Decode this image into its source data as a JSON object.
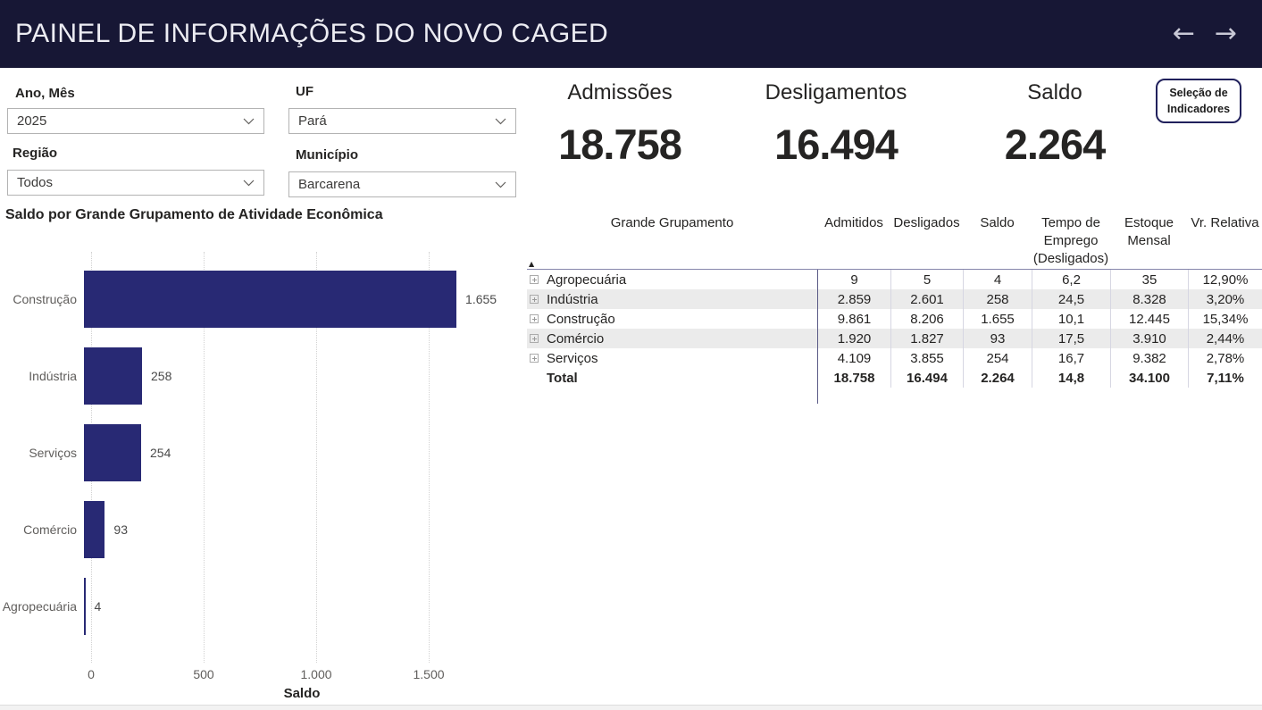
{
  "header": {
    "title": "PAINEL DE INFORMAÇÕES DO NOVO CAGED",
    "back_arrow": "←",
    "forward_arrow": "→"
  },
  "filters": [
    {
      "label": "Ano, Mês",
      "value": "2025"
    },
    {
      "label": "UF",
      "value": "Pará"
    },
    {
      "label": "Região",
      "value": "Todos"
    },
    {
      "label": "Município",
      "value": "Barcarena"
    }
  ],
  "kpis": [
    {
      "label": "Admissões",
      "value": "18.758"
    },
    {
      "label": "Desligamentos",
      "value": "16.494"
    },
    {
      "label": "Saldo",
      "value": "2.264"
    }
  ],
  "indicator_button": {
    "line1": "Seleção de",
    "line2": "Indicadores"
  },
  "chart_data": {
    "type": "bar",
    "orientation": "horizontal",
    "title": "Saldo por Grande Grupamento de Atividade Econômica",
    "categories": [
      "Construção",
      "Indústria",
      "Serviços",
      "Comércio",
      "Agropecuária"
    ],
    "values": [
      1655,
      258,
      254,
      93,
      4
    ],
    "value_labels": [
      "1.655",
      "258",
      "254",
      "93",
      "4"
    ],
    "xlabel": "Saldo",
    "x_ticks": [
      "0",
      "500",
      "1.000",
      "1.500"
    ],
    "x_tick_values": [
      0,
      500,
      1000,
      1500
    ],
    "xlim": [
      0,
      1896
    ],
    "grid": "dotted-vertical",
    "legend": "none",
    "bar_color": "#282974"
  },
  "table": {
    "sort_icon": "▲",
    "columns": [
      "Grande Grupamento",
      "Admitidos",
      "Desligados",
      "Saldo",
      "Tempo de Emprego (Desligados)",
      "Estoque Mensal",
      "Vr. Relativa"
    ],
    "rows": [
      {
        "name": "Agropecuária",
        "cells": [
          "9",
          "5",
          "4",
          "6,2",
          "35",
          "12,90%"
        ]
      },
      {
        "name": "Indústria",
        "cells": [
          "2.859",
          "2.601",
          "258",
          "24,5",
          "8.328",
          "3,20%"
        ]
      },
      {
        "name": "Construção",
        "cells": [
          "9.861",
          "8.206",
          "1.655",
          "10,1",
          "12.445",
          "15,34%"
        ]
      },
      {
        "name": "Comércio",
        "cells": [
          "1.920",
          "1.827",
          "93",
          "17,5",
          "3.910",
          "2,44%"
        ]
      },
      {
        "name": "Serviços",
        "cells": [
          "4.109",
          "3.855",
          "254",
          "16,7",
          "9.382",
          "2,78%"
        ]
      },
      {
        "name": "Total",
        "cells": [
          "18.758",
          "16.494",
          "2.264",
          "14,8",
          "34.100",
          "7,11%"
        ]
      }
    ]
  },
  "colors": {
    "header_bg": "#171735",
    "bar_fill": "#282974",
    "button_border": "#21215c",
    "row_shade": "#ebebeb",
    "header_separator": "#8585ab",
    "text": "#252423"
  }
}
